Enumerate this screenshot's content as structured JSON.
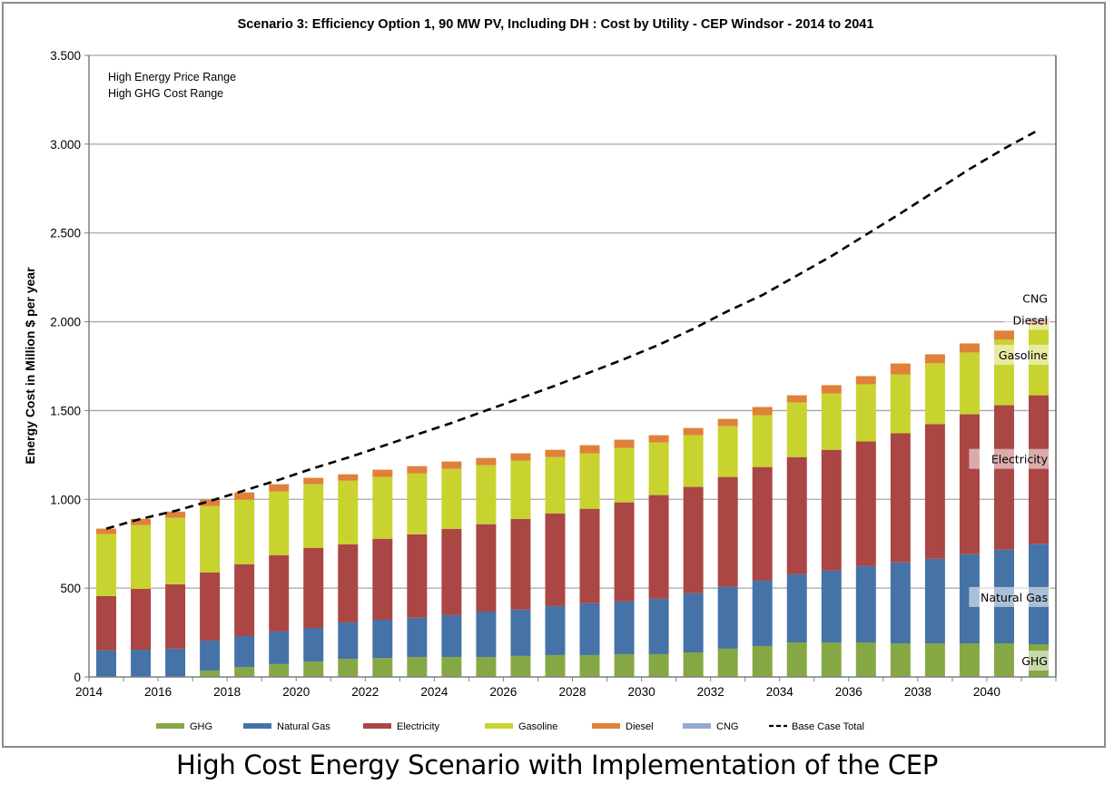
{
  "caption": "High Cost Energy Scenario with Implementation of the CEP",
  "colors": {
    "GHG": "#86a844",
    "Natural Gas": "#4573a7",
    "Electricity": "#aa4644",
    "Gasoline": "#c8d32f",
    "Diesel": "#e0813a",
    "CNG": "#93a9cf",
    "Base Case Total": "#000000",
    "gridline": "#a6a6a6",
    "axis": "#7f7f7f"
  },
  "chart_data": {
    "type": "bar",
    "stacked": true,
    "title": "Scenario 3: Efficiency Option 1, 90 MW PV, Including DH : Cost by Utility - CEP Windsor - 2014 to 2041",
    "xlabel": "",
    "ylabel": "Energy Cost in Million $ per year",
    "ylim": [
      0,
      3500
    ],
    "yticks": [
      0,
      500,
      1000,
      1500,
      2000,
      2500,
      3000,
      3500
    ],
    "ytick_labels": [
      "0",
      "500",
      "1.000",
      "1.500",
      "2.000",
      "2.500",
      "3.000",
      "3.500"
    ],
    "xtick_labels": [
      "2014",
      "2016",
      "2018",
      "2020",
      "2022",
      "2024",
      "2026",
      "2028",
      "2030",
      "2032",
      "2034",
      "2036",
      "2038",
      "2040"
    ],
    "grid": true,
    "legend_position": "bottom",
    "annotations": [
      "High Energy Price Range",
      "High GHG Cost Range"
    ],
    "series_labels_on_last_bar": [
      "CNG",
      "Diesel",
      "Gasoline",
      "Electricity",
      "Natural Gas",
      "GHG"
    ],
    "categories": [
      2014,
      2015,
      2016,
      2017,
      2018,
      2019,
      2020,
      2021,
      2022,
      2023,
      2024,
      2025,
      2026,
      2027,
      2028,
      2029,
      2030,
      2031,
      2032,
      2033,
      2034,
      2035,
      2036,
      2037,
      2038,
      2039,
      2040,
      2041
    ],
    "series": [
      {
        "name": "GHG",
        "kind": "bar",
        "values": [
          0,
          0,
          0,
          36,
          56,
          72,
          87,
          102,
          107,
          112,
          112,
          112,
          118,
          123,
          123,
          128,
          128,
          138,
          159,
          174,
          194,
          194,
          194,
          189,
          189,
          189,
          189,
          184
        ]
      },
      {
        "name": "Natural Gas",
        "kind": "bar",
        "values": [
          150,
          153,
          159,
          169,
          174,
          184,
          189,
          205,
          215,
          221,
          236,
          256,
          261,
          276,
          292,
          297,
          312,
          333,
          348,
          368,
          384,
          405,
          430,
          456,
          476,
          502,
          527,
          563
        ]
      },
      {
        "name": "Electricity",
        "kind": "bar",
        "values": [
          305,
          343,
          363,
          384,
          405,
          430,
          451,
          440,
          456,
          470,
          486,
          492,
          511,
          522,
          532,
          558,
          584,
          599,
          619,
          640,
          660,
          680,
          702,
          727,
          758,
          788,
          814,
          839
        ]
      },
      {
        "name": "Gasoline",
        "kind": "bar",
        "values": [
          350,
          359,
          374,
          373,
          363,
          358,
          358,
          358,
          348,
          343,
          338,
          332,
          328,
          317,
          312,
          307,
          296,
          291,
          286,
          292,
          308,
          318,
          322,
          332,
          343,
          348,
          369,
          395
        ]
      },
      {
        "name": "Diesel",
        "kind": "bar",
        "values": [
          30,
          35,
          35,
          36,
          41,
          41,
          36,
          36,
          41,
          41,
          41,
          41,
          41,
          41,
          46,
          46,
          41,
          41,
          41,
          46,
          40,
          46,
          46,
          61,
          51,
          51,
          51,
          35
        ]
      },
      {
        "name": "CNG",
        "kind": "bar",
        "values": [
          0,
          0,
          0,
          0,
          0,
          0,
          0,
          0,
          0,
          0,
          0,
          0,
          0,
          0,
          0,
          0,
          0,
          0,
          0,
          0,
          0,
          0,
          0,
          0,
          0,
          0,
          0,
          5
        ]
      },
      {
        "name": "Base Case Total",
        "kind": "line",
        "style": "dashed",
        "values": [
          835,
          890,
          935,
          990,
          1050,
          1110,
          1175,
          1235,
          1300,
          1365,
          1430,
          1500,
          1570,
          1640,
          1715,
          1790,
          1870,
          1960,
          2060,
          2150,
          2260,
          2370,
          2490,
          2610,
          2735,
          2860,
          2975,
          3080
        ]
      }
    ]
  }
}
